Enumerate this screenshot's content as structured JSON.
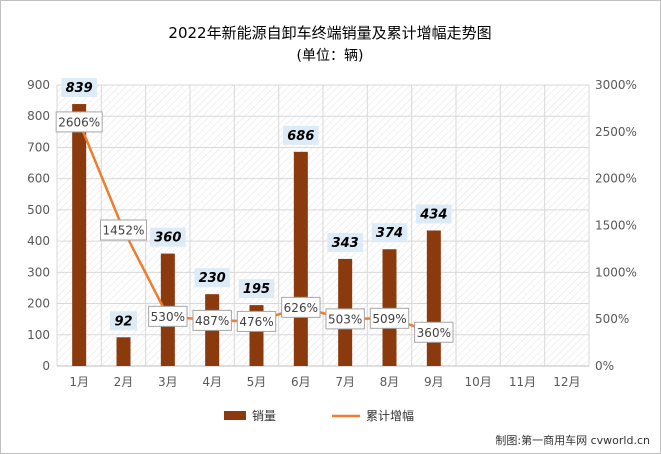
{
  "chart_data": {
    "type": "bar",
    "title": "2022年新能源自卸车终端销量及累计增幅走势图",
    "subtitle": "(单位：辆)",
    "categories": [
      "1月",
      "2月",
      "3月",
      "4月",
      "5月",
      "6月",
      "7月",
      "8月",
      "9月",
      "10月",
      "11月",
      "12月"
    ],
    "series": [
      {
        "name": "销量",
        "type": "bar",
        "axis": "left",
        "values": [
          839,
          92,
          360,
          230,
          195,
          686,
          343,
          374,
          434,
          null,
          null,
          null
        ]
      },
      {
        "name": "累计增幅",
        "type": "line",
        "axis": "right",
        "values": [
          2606,
          1452,
          530,
          487,
          476,
          626,
          503,
          509,
          360,
          null,
          null,
          null
        ]
      }
    ],
    "bar_labels": [
      "839",
      "92",
      "360",
      "230",
      "195",
      "686",
      "343",
      "374",
      "434"
    ],
    "line_labels": [
      "2606%",
      "1452%",
      "530%",
      "487%",
      "476%",
      "626%",
      "503%",
      "509%",
      "360%"
    ],
    "y_left": {
      "ylim": [
        0,
        900
      ],
      "ticks": [
        "0",
        "100",
        "200",
        "300",
        "400",
        "500",
        "600",
        "700",
        "800",
        "900"
      ]
    },
    "y_right": {
      "ylim": [
        0,
        3000
      ],
      "ticks": [
        "0%",
        "500%",
        "1000%",
        "1500%",
        "2000%",
        "2500%",
        "3000%"
      ]
    },
    "legend": {
      "position": "bottom",
      "items": [
        "销量",
        "累计增幅"
      ]
    },
    "grid": true,
    "colors": {
      "bar": "#8B3A0E",
      "line": "#ED7D31",
      "bar_label_bg": "#DDEBF7",
      "grid": "#D9D9D9"
    }
  },
  "footer": {
    "source": "制图:第一商用车网 cvworld.cn"
  }
}
